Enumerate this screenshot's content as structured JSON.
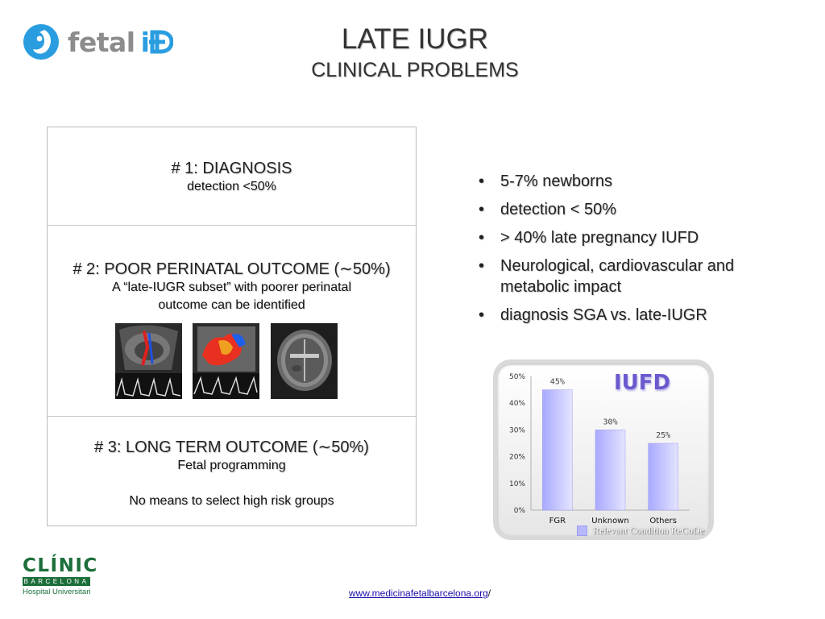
{
  "logo": {
    "text_fetal": "fetal",
    "text_id": "i",
    "accent": "#2a9de0"
  },
  "header": {
    "title": "LATE IUGR",
    "subtitle": "CLINICAL PROBLEMS"
  },
  "problems": [
    {
      "title": "# 1: DIAGNOSIS",
      "sub": [
        "detection <50%"
      ]
    },
    {
      "title": "# 2: POOR PERINATAL OUTCOME (∼50%)",
      "sub": [
        "A “late-IUGR subset” with poorer perinatal",
        "outcome can be identified"
      ]
    },
    {
      "title": "# 3: LONG TERM OUTCOME (∼50%)",
      "sub": [
        "Fetal programming",
        "",
        "No means to select high risk groups"
      ]
    }
  ],
  "ultrasound_images": [
    "doppler-ultrasound",
    "color-doppler-ultrasound",
    "brain-ultrasound"
  ],
  "bullets": [
    "5-7% newborns",
    "detection < 50%",
    "> 40% late pregnancy IUFD",
    "Neurological, cardiovascular and metabolic impact",
    "diagnosis SGA vs. late-IUGR"
  ],
  "bullet_char": "•",
  "chart_data": {
    "type": "bar",
    "title": "IUFD",
    "categories": [
      "FGR",
      "Unknown",
      "Others"
    ],
    "values": [
      45,
      30,
      25
    ],
    "data_labels": [
      "45%",
      "30%",
      "25%"
    ],
    "y_ticks": [
      "0%",
      "10%",
      "20%",
      "30%",
      "40%",
      "50%"
    ],
    "ylim": [
      0,
      50
    ],
    "legend": "Relevant Condition ReCoDe",
    "bar_color": "#b8b8ff",
    "grid": false
  },
  "footer": {
    "clinic_name": "CLÍNIC",
    "clinic_city": "BARCELONA",
    "clinic_sub": "Hospital Universitari",
    "link_text": "www.medicinafetalbarcelona.org",
    "link_suffix": "/"
  }
}
